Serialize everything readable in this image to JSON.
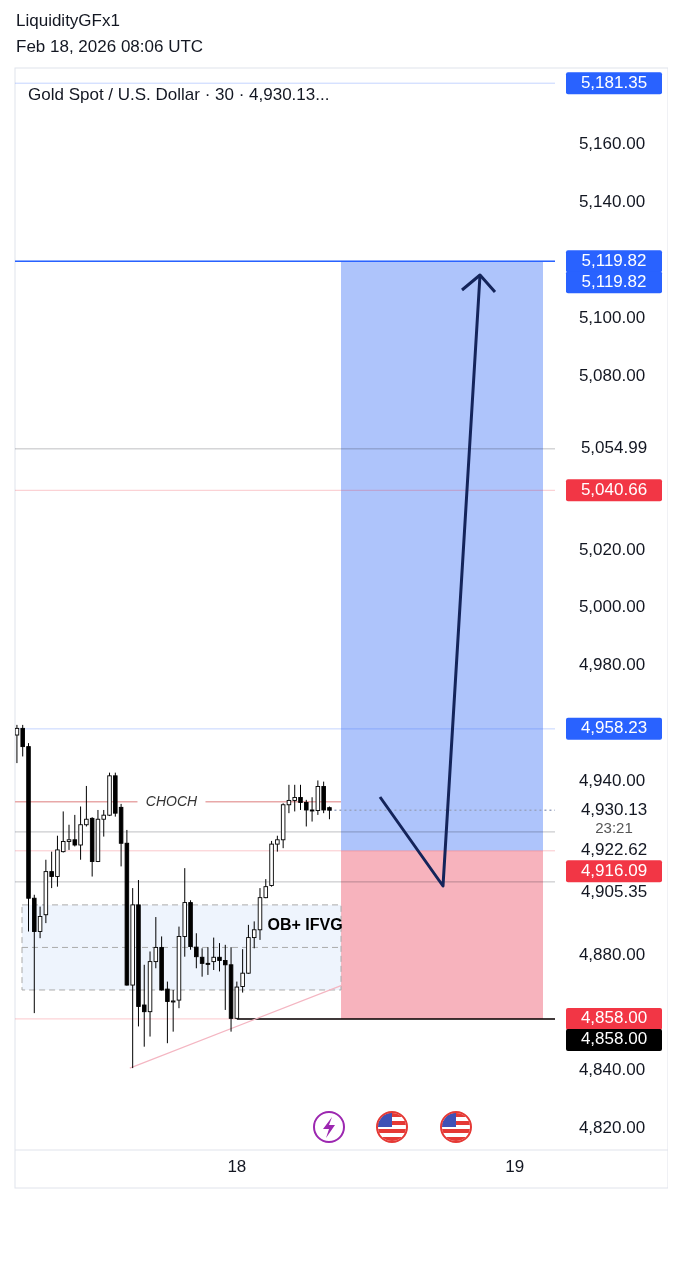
{
  "chart_data": {
    "type": "candlestick",
    "title": "Gold Spot / U.S. Dollar · 30 · 4,930.13...",
    "annotations": [
      "LiquidityGFx1",
      "Feb 18, 2026 08:06 UTC",
      "CHOCH",
      "23:21"
    ],
    "x": [
      "2026-02-17T05:00",
      "2026-02-17T05:30",
      "2026-02-17T06:00",
      "2026-02-17T06:30",
      "2026-02-17T07:00",
      "2026-02-17T07:30",
      "2026-02-17T08:00",
      "2026-02-17T08:30",
      "2026-02-17T09:00",
      "2026-02-17T09:30",
      "2026-02-17T10:00",
      "2026-02-17T10:30",
      "2026-02-17T11:00",
      "2026-02-17T11:30",
      "2026-02-17T12:00",
      "2026-02-17T12:30",
      "2026-02-17T13:00",
      "2026-02-17T13:30",
      "2026-02-17T14:00",
      "2026-02-17T14:30",
      "2026-02-17T15:00",
      "2026-02-17T15:30",
      "2026-02-17T16:00",
      "2026-02-17T16:30",
      "2026-02-17T17:00",
      "2026-02-17T17:30",
      "2026-02-17T18:00",
      "2026-02-17T18:30",
      "2026-02-17T19:00",
      "2026-02-17T19:30",
      "2026-02-17T20:00",
      "2026-02-17T20:30",
      "2026-02-17T21:00",
      "2026-02-17T21:30",
      "2026-02-17T22:00",
      "2026-02-17T22:30",
      "2026-02-17T23:00",
      "2026-02-17T23:30",
      "2026-02-18T00:00",
      "2026-02-18T00:30",
      "2026-02-18T01:00",
      "2026-02-18T01:30",
      "2026-02-18T02:00",
      "2026-02-18T02:30",
      "2026-02-18T03:00",
      "2026-02-18T03:30",
      "2026-02-18T04:00",
      "2026-02-18T04:30",
      "2026-02-18T05:00",
      "2026-02-18T05:30",
      "2026-02-18T06:00",
      "2026-02-18T06:30",
      "2026-02-18T07:00",
      "2026-02-18T07:30",
      "2026-02-18T08:00"
    ],
    "ohlc": [
      [
        4956.1,
        4959.6,
        4946.4,
        4958.4
      ],
      [
        4958.4,
        4959.6,
        4948.7,
        4952.1
      ],
      [
        4952.1,
        4953.3,
        4888.2,
        4899.7
      ],
      [
        4899.7,
        4900.9,
        4860.0,
        4888.2
      ],
      [
        4888.2,
        4896.8,
        4885.9,
        4893.4
      ],
      [
        4894.0,
        4913.0,
        4891.1,
        4908.9
      ],
      [
        4908.9,
        4915.8,
        4903.2,
        4907.2
      ],
      [
        4907.2,
        4921.3,
        4903.7,
        4916.4
      ],
      [
        4915.8,
        4929.7,
        4915.5,
        4919.3
      ],
      [
        4919.3,
        4925.1,
        4916.4,
        4919.9
      ],
      [
        4919.9,
        4928.5,
        4917.6,
        4918.1
      ],
      [
        4918.1,
        4931.4,
        4913.0,
        4925.1
      ],
      [
        4925.1,
        4938.5,
        4924.5,
        4927.0
      ],
      [
        4927.3,
        4927.7,
        4907.2,
        4912.4
      ],
      [
        4912.4,
        4930.2,
        4912.2,
        4927.0
      ],
      [
        4927.0,
        4930.2,
        4921.0,
        4928.4
      ],
      [
        4928.4,
        4943.1,
        4928.1,
        4942.0
      ],
      [
        4942.0,
        4943.1,
        4927.9,
        4929.1
      ],
      [
        4931.1,
        4932.3,
        4910.7,
        4918.7
      ],
      [
        4918.7,
        4923.3,
        4869.5,
        4869.7
      ],
      [
        4869.7,
        4903.2,
        4841.0,
        4897.4
      ],
      [
        4897.4,
        4906.0,
        4855.4,
        4862.3
      ],
      [
        4862.8,
        4876.7,
        4848.4,
        4860.5
      ],
      [
        4860.5,
        4881.3,
        4851.9,
        4877.8
      ],
      [
        4877.8,
        4893.2,
        4875.5,
        4882.7
      ],
      [
        4882.7,
        4886.5,
        4867.8,
        4868.0
      ],
      [
        4868.3,
        4870.9,
        4849.6,
        4864.0
      ],
      [
        4864.0,
        4868.0,
        4853.6,
        4864.2
      ],
      [
        4864.5,
        4889.9,
        4861.7,
        4886.5
      ],
      [
        4886.5,
        4910.1,
        4879.5,
        4898.2
      ],
      [
        4898.2,
        4899.0,
        4881.9,
        4883.0
      ],
      [
        4882.8,
        4887.6,
        4875.5,
        4879.5
      ],
      [
        4879.3,
        4882.4,
        4872.6,
        4877.2
      ],
      [
        4877.2,
        4882.8,
        4873.2,
        4877.0
      ],
      [
        4877.8,
        4886.1,
        4874.9,
        4879.3
      ],
      [
        4879.3,
        4884.2,
        4874.4,
        4878.2
      ],
      [
        4878.2,
        4883.6,
        4861.1,
        4876.7
      ],
      [
        4876.7,
        4882.8,
        4853.6,
        4858.2
      ],
      [
        4858.2,
        4870.9,
        4858.0,
        4869.0
      ],
      [
        4869.2,
        4882.1,
        4867.1,
        4873.8
      ],
      [
        4873.8,
        4890.5,
        4873.6,
        4886.1
      ],
      [
        4886.1,
        4891.7,
        4882.4,
        4888.8
      ],
      [
        4888.8,
        4903.2,
        4885.3,
        4899.9
      ],
      [
        4899.9,
        4906.3,
        4899.7,
        4903.7
      ],
      [
        4904.1,
        4919.5,
        4903.7,
        4918.4
      ],
      [
        4918.4,
        4921.3,
        4915.8,
        4919.9
      ],
      [
        4919.9,
        4932.5,
        4917.0,
        4932.0
      ],
      [
        4932.0,
        4938.9,
        4929.1,
        4933.5
      ],
      [
        4933.5,
        4938.9,
        4929.7,
        4934.5
      ],
      [
        4934.5,
        4938.9,
        4930.2,
        4932.8
      ],
      [
        4932.8,
        4933.7,
        4924.5,
        4930.2
      ],
      [
        4930.2,
        4934.6,
        4926.2,
        4930.0
      ],
      [
        4930.0,
        4940.4,
        4928.5,
        4938.3
      ],
      [
        4938.3,
        4940.0,
        4929.1,
        4930.2
      ],
      [
        4931.0,
        4931.4,
        4927.0,
        4930.13
      ]
    ],
    "series": [
      {
        "type": "line",
        "color": "#f4b6c2",
        "x": [
          "2026-02-17T14:45",
          "2026-02-18T09:00"
        ],
        "values": [
          4841,
          4869.5
        ]
      }
    ],
    "xlim": [
      "2026-02-17T04:50",
      "2026-02-19T13:15"
    ],
    "xticks": [
      {
        "value": "2026-02-18",
        "label": "18"
      },
      {
        "value": "2026-02-19",
        "label": "19"
      }
    ],
    "ylim": [
      4812.7,
      5186.6
    ],
    "yticks": [
      {
        "value": 4820,
        "label": "4,820.00"
      },
      {
        "value": 4840,
        "label": "4,840.00"
      },
      {
        "value": 4880,
        "label": "4,880.00"
      },
      {
        "value": 4940,
        "label": "4,940.00"
      },
      {
        "value": 4980,
        "label": "4,980.00"
      },
      {
        "value": 5000,
        "label": "5,000.00"
      },
      {
        "value": 5020,
        "label": "5,020.00"
      },
      {
        "value": 5080,
        "label": "5,080.00"
      },
      {
        "value": 5100,
        "label": "5,100.00"
      },
      {
        "value": 5140,
        "label": "5,140.00"
      },
      {
        "value": 5160,
        "label": "5,160.00"
      }
    ],
    "bands": [
      {
        "axis": "y",
        "from": 4916.09,
        "to": 5119.82,
        "color": "#aec4fb"
      },
      {
        "axis": "y",
        "from": 4858,
        "to": 4916.09,
        "color": "#f7b3bd"
      },
      {
        "axis": "y",
        "from": 4868,
        "to": 4897.4,
        "label": "OB+ IFVG",
        "color": "#eef4fd"
      }
    ],
    "ref_lines": [
      {
        "axis": "y",
        "value": 5181.35,
        "label": "5,181.35",
        "color": "#2962ff"
      },
      {
        "axis": "y",
        "value": 5119.82,
        "label": "5,119.82",
        "color": "#2962ff"
      },
      {
        "axis": "y",
        "value": 5119.82,
        "label": "5,119.82",
        "color": "#2962ff",
        "line_style": "solid"
      },
      {
        "axis": "y",
        "value": 5054.99,
        "label": "5,054.99"
      },
      {
        "axis": "y",
        "value": 5040.66,
        "label": "5,040.66",
        "color": "#f23645"
      },
      {
        "axis": "y",
        "value": 4958.23,
        "label": "4,958.23",
        "color": "#2962ff"
      },
      {
        "axis": "y",
        "value": 4933,
        "color": "#e8a8a8",
        "line_style": "solid"
      },
      {
        "axis": "y",
        "value": 4930.13,
        "label": "4,930.13",
        "line_style": "dotted"
      },
      {
        "axis": "y",
        "value": 4922.62,
        "label": "4,922.62"
      },
      {
        "axis": "y",
        "value": 4916.09,
        "label": "4,916.09",
        "color": "#f23645"
      },
      {
        "axis": "y",
        "value": 4905.35,
        "label": "4,905.35"
      },
      {
        "axis": "y",
        "value": 4858,
        "label": "4,858.00",
        "color": "#f23645"
      },
      {
        "axis": "y",
        "value": 4858,
        "label": "4,858.00",
        "color": "#000000",
        "line_style": "solid"
      }
    ]
  }
}
